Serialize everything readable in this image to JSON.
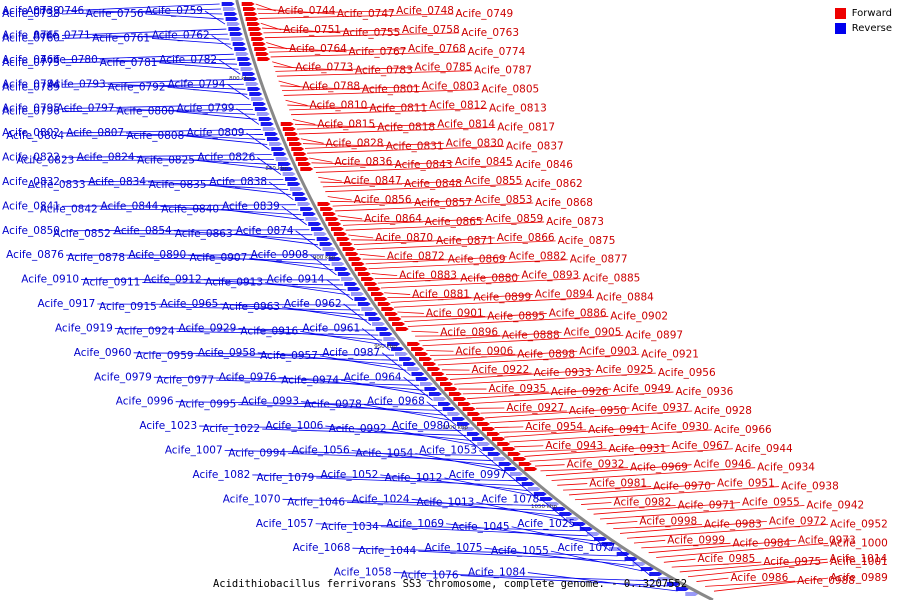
{
  "title": "Acidithiobacillus ferrivorans SS3 chromosome, complete genome. - 0..3207552",
  "legend": {
    "forward_label": "Forward",
    "reverse_label": "Reverse",
    "forward_color": "#ee0000",
    "reverse_color": "#0000ee"
  },
  "tick_labels": [
    "800 kbp",
    "850 kbp",
    "900 kbp",
    "950 kbp",
    "1000 kbp",
    "1050 kbp"
  ],
  "reverse_genes": [
    "Acife_0739",
    "Acife_0738",
    "Acife_0746",
    "Acife_0756",
    "Acife_0759",
    "Acife_0765",
    "Acife_0760",
    "Acife_0771",
    "Acife_0761",
    "Acife_0762",
    "Acife_0766",
    "Acife_0775",
    "Acife_0780",
    "Acife_0781",
    "Acife_0782",
    "Acife_0784",
    "Acife_0789",
    "Acife_0793",
    "Acife_0792",
    "Acife_0794",
    "Acife_0795",
    "Acife_0796",
    "Acife_0797",
    "Acife_0800",
    "Acife_0799",
    "Acife_0802",
    "Acife_0804",
    "Acife_0807",
    "Acife_0808",
    "Acife_0809",
    "Acife_0822",
    "Acife_0823",
    "Acife_0824",
    "Acife_0825",
    "Acife_0826",
    "Acife_0832",
    "Acife_0833",
    "Acife_0834",
    "Acife_0835",
    "Acife_0838",
    "Acife_0841",
    "Acife_0842",
    "Acife_0844",
    "Acife_0840",
    "Acife_0839",
    "Acife_0850",
    "Acife_0852",
    "Acife_0854",
    "Acife_0863",
    "Acife_0874",
    "Acife_0876",
    "Acife_0878",
    "Acife_0890",
    "Acife_0907",
    "Acife_0908",
    "Acife_0910",
    "Acife_0911",
    "Acife_0912",
    "Acife_0913",
    "Acife_0914",
    "Acife_0917",
    "Acife_0915",
    "Acife_0965",
    "Acife_0963",
    "Acife_0962",
    "Acife_0919",
    "Acife_0924",
    "Acife_0929",
    "Acife_0916",
    "Acife_0961",
    "Acife_0960",
    "Acife_0959",
    "Acife_0958",
    "Acife_0957",
    "Acife_0987",
    "Acife_0979",
    "Acife_0977",
    "Acife_0976",
    "Acife_0974",
    "Acife_0964",
    "Acife_0996",
    "Acife_0995",
    "Acife_0993",
    "Acife_0978",
    "Acife_0968",
    "Acife_1023",
    "Acife_1022",
    "Acife_1006",
    "Acife_0992",
    "Acife_0980",
    "Acife_1007",
    "Acife_0994",
    "Acife_1056",
    "Acife_1054",
    "Acife_1053",
    "Acife_1082",
    "Acife_1079",
    "Acife_1052",
    "Acife_1012",
    "Acife_0997",
    "Acife_1070",
    "Acife_1046",
    "Acife_1024",
    "Acife_1013",
    "Acife_1078",
    "Acife_1057",
    "Acife_1034",
    "Acife_1069",
    "Acife_1045",
    "Acife_1025",
    "Acife_1068",
    "Acife_1044",
    "Acife_1075",
    "Acife_1055",
    "Acife_1077",
    "Acife_1058",
    "Acife_1076",
    "Acife_1084"
  ],
  "forward_genes": [
    "Acife_0744",
    "Acife_0747",
    "Acife_0748",
    "Acife_0749",
    "Acife_0751",
    "Acife_0755",
    "Acife_0758",
    "Acife_0763",
    "Acife_0764",
    "Acife_0767",
    "Acife_0768",
    "Acife_0774",
    "Acife_0773",
    "Acife_0783",
    "Acife_0785",
    "Acife_0787",
    "Acife_0788",
    "Acife_0801",
    "Acife_0803",
    "Acife_0805",
    "Acife_0810",
    "Acife_0811",
    "Acife_0812",
    "Acife_0813",
    "Acife_0815",
    "Acife_0818",
    "Acife_0814",
    "Acife_0817",
    "Acife_0828",
    "Acife_0831",
    "Acife_0830",
    "Acife_0837",
    "Acife_0836",
    "Acife_0843",
    "Acife_0845",
    "Acife_0846",
    "Acife_0847",
    "Acife_0848",
    "Acife_0855",
    "Acife_0862",
    "Acife_0856",
    "Acife_0857",
    "Acife_0853",
    "Acife_0868",
    "Acife_0864",
    "Acife_0865",
    "Acife_0859",
    "Acife_0873",
    "Acife_0870",
    "Acife_0871",
    "Acife_0866",
    "Acife_0875",
    "Acife_0872",
    "Acife_0869",
    "Acife_0882",
    "Acife_0877",
    "Acife_0883",
    "Acife_0880",
    "Acife_0893",
    "Acife_0885",
    "Acife_0881",
    "Acife_0899",
    "Acife_0894",
    "Acife_0884",
    "Acife_0901",
    "Acife_0895",
    "Acife_0886",
    "Acife_0902",
    "Acife_0896",
    "Acife_0888",
    "Acife_0905",
    "Acife_0897",
    "Acife_0906",
    "Acife_0898",
    "Acife_0903",
    "Acife_0921",
    "Acife_0922",
    "Acife_0933",
    "Acife_0925",
    "Acife_0956",
    "Acife_0935",
    "Acife_0926",
    "Acife_0949",
    "Acife_0936",
    "Acife_0927",
    "Acife_0950",
    "Acife_0937",
    "Acife_0928",
    "Acife_0954",
    "Acife_0941",
    "Acife_0930",
    "Acife_0966",
    "Acife_0943",
    "Acife_0931",
    "Acife_0967",
    "Acife_0944",
    "Acife_0932",
    "Acife_0969",
    "Acife_0946",
    "Acife_0934",
    "Acife_0981",
    "Acife_0970",
    "Acife_0951",
    "Acife_0938",
    "Acife_0982",
    "Acife_0971",
    "Acife_0955",
    "Acife_0942",
    "Acife_0998",
    "Acife_0983",
    "Acife_0972",
    "Acife_0952",
    "Acife_0999",
    "Acife_0984",
    "Acife_0973",
    "Acife_1000",
    "Acife_0985",
    "Acife_0975",
    "Acife_1014",
    "Acife_1001",
    "Acife_0986",
    "Acife_0988",
    "Acife_0989"
  ]
}
